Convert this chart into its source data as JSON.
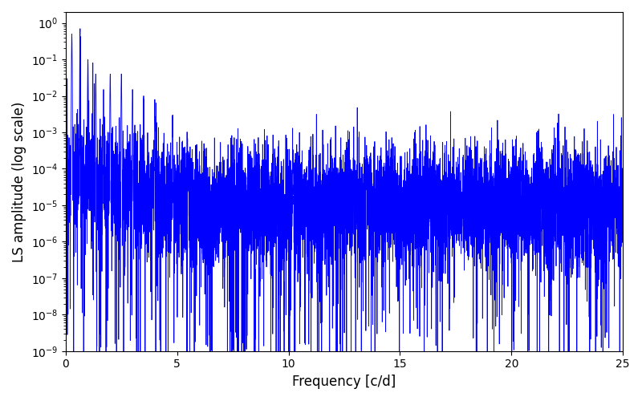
{
  "title": "",
  "xlabel": "Frequency [c/d]",
  "ylabel": "LS amplitude (log scale)",
  "xlim": [
    0,
    25
  ],
  "ylim": [
    1e-09,
    2
  ],
  "line_color": "#0000ff",
  "line_width": 0.6,
  "background_color": "#ffffff",
  "seed": 12345,
  "n_points": 8000,
  "freq_max": 25.0
}
